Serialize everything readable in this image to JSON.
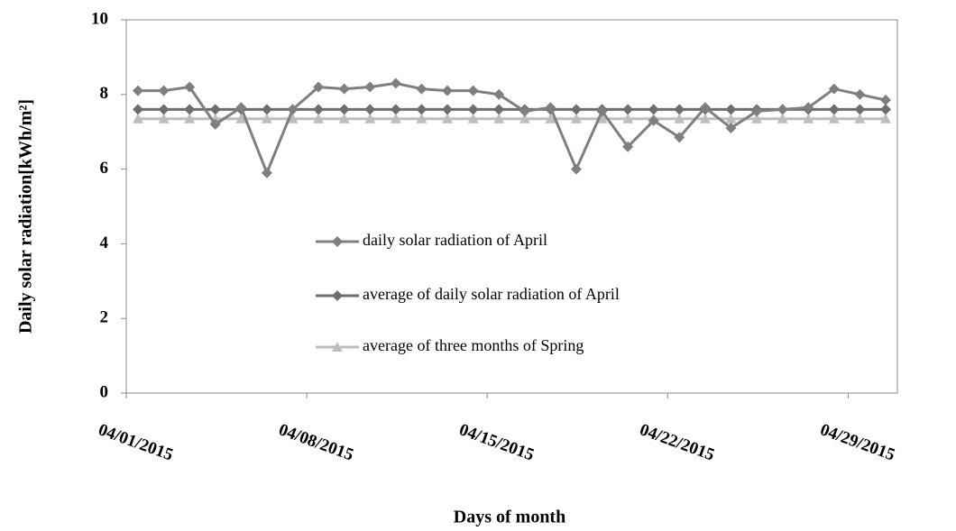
{
  "chart_data": {
    "type": "line",
    "y_label": "Daily solar radiation[kWh/m²]",
    "x_label": "Days of month",
    "categories": [
      "04/01/2015",
      null,
      null,
      null,
      null,
      null,
      null,
      "04/08/2015",
      null,
      null,
      null,
      null,
      null,
      null,
      "04/15/2015",
      null,
      null,
      null,
      null,
      null,
      null,
      "04/22/2015",
      null,
      null,
      null,
      null,
      null,
      null,
      "04/29/2015",
      null
    ],
    "series": [
      {
        "name": "daily solar radiation of April",
        "color": "#7f7f7f",
        "marker": "diamond",
        "values": [
          8.1,
          8.1,
          8.2,
          7.2,
          7.65,
          5.9,
          7.6,
          8.2,
          8.15,
          8.2,
          8.3,
          8.15,
          8.1,
          8.1,
          8.0,
          7.55,
          7.65,
          6.0,
          7.55,
          6.6,
          7.3,
          6.85,
          7.65,
          7.1,
          7.55,
          7.6,
          7.65,
          8.15,
          8.0,
          7.85
        ]
      },
      {
        "name": "average of daily solar radiation of April",
        "color": "#6e6e6e",
        "marker": "diamond",
        "values": [
          7.6,
          7.6,
          7.6,
          7.6,
          7.6,
          7.6,
          7.6,
          7.6,
          7.6,
          7.6,
          7.6,
          7.6,
          7.6,
          7.6,
          7.6,
          7.6,
          7.6,
          7.6,
          7.6,
          7.6,
          7.6,
          7.6,
          7.6,
          7.6,
          7.6,
          7.6,
          7.6,
          7.6,
          7.6,
          7.6
        ]
      },
      {
        "name": "average of  three months of Spring",
        "color": "#bdbdbd",
        "marker": "triangle",
        "values": [
          7.35,
          7.35,
          7.35,
          7.35,
          7.35,
          7.35,
          7.35,
          7.35,
          7.35,
          7.35,
          7.35,
          7.35,
          7.35,
          7.35,
          7.35,
          7.35,
          7.35,
          7.35,
          7.35,
          7.35,
          7.35,
          7.35,
          7.35,
          7.35,
          7.35,
          7.35,
          7.35,
          7.35,
          7.35,
          7.35
        ]
      }
    ],
    "ylim": [
      0,
      10
    ],
    "yticks": [
      0,
      2,
      4,
      6,
      8,
      10
    ],
    "grid": false
  }
}
